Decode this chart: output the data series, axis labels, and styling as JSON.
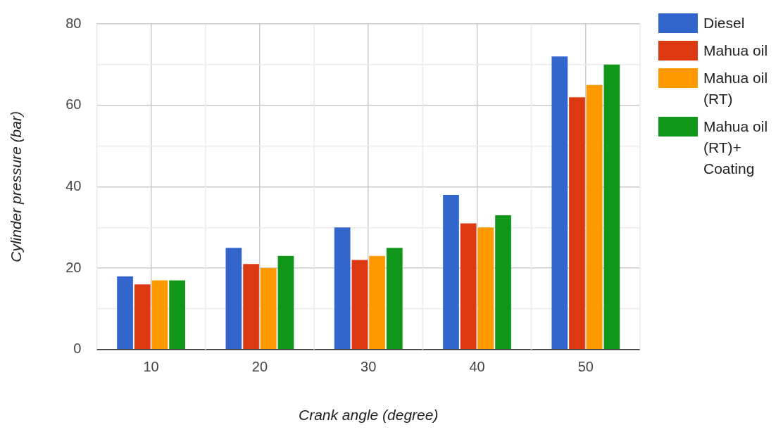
{
  "chart_data": {
    "type": "bar",
    "xlabel": "Crank angle (degree)",
    "ylabel": "Cylinder pressure (bar)",
    "categories": [
      "10",
      "20",
      "30",
      "40",
      "50"
    ],
    "series": [
      {
        "name": "Diesel",
        "color": "#3366cc",
        "values": [
          18,
          25,
          30,
          38,
          72
        ]
      },
      {
        "name": "Mahua oil",
        "color": "#dc3912",
        "values": [
          16,
          21,
          22,
          31,
          62
        ]
      },
      {
        "name": "Mahua oil (RT)",
        "color": "#ff9900",
        "values": [
          17,
          20,
          23,
          30,
          65
        ]
      },
      {
        "name": "Mahua oil (RT)+ Coating",
        "color": "#109618",
        "values": [
          17,
          23,
          25,
          33,
          70
        ]
      }
    ],
    "ylim": [
      0,
      80
    ],
    "yticks": [
      0,
      {
        "value": 10,
        "label": null
      },
      20,
      {
        "value": 30,
        "label": null
      },
      40,
      {
        "value": 50,
        "label": null
      },
      60,
      {
        "value": 70,
        "label": null
      },
      80
    ],
    "grid": true,
    "legend": "right"
  }
}
